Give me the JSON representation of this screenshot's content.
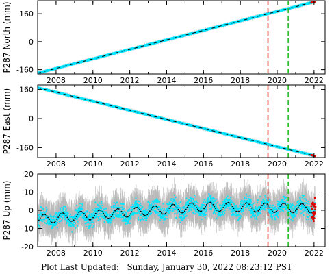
{
  "colors": {
    "data": "#00e5ff",
    "errorbar": "#b9b9b9",
    "trend": "#000000",
    "recent": "#dd0000",
    "line_red": "#ee1111",
    "line_green": "#22bb22"
  },
  "chart_data": [
    {
      "type": "scatter",
      "ylabel": "P287 North (mm)",
      "xlim": [
        2007.0,
        2022.6
      ],
      "ylim": [
        -185,
        235
      ],
      "x_ticks": [
        "2008",
        "2010",
        "2012",
        "2014",
        "2016",
        "2018",
        "2020",
        "2022"
      ],
      "y_ticks": [
        "160",
        "0",
        "-160"
      ],
      "series": [
        {
          "x": [
            2007.0,
            2022.0
          ],
          "y": [
            -180,
            228
          ]
        }
      ],
      "vlines": [
        {
          "x": 2019.5,
          "color": "red",
          "style": "dashed"
        },
        {
          "x": 2020.6,
          "color": "green",
          "style": "dashed"
        }
      ]
    },
    {
      "type": "scatter",
      "ylabel": "P287 East (mm)",
      "xlim": [
        2007.0,
        2022.6
      ],
      "ylim": [
        -215,
        185
      ],
      "x_ticks": [
        "2008",
        "2010",
        "2012",
        "2014",
        "2016",
        "2018",
        "2020",
        "2022"
      ],
      "y_ticks": [
        "160",
        "0",
        "-160"
      ],
      "series": [
        {
          "x": [
            2007.0,
            2022.0
          ],
          "y": [
            170,
            -205
          ]
        }
      ],
      "vlines": [
        {
          "x": 2019.5,
          "color": "red",
          "style": "dashed"
        },
        {
          "x": 2020.6,
          "color": "green",
          "style": "dashed"
        }
      ]
    },
    {
      "type": "scatter",
      "ylabel": "P287 Up (mm)",
      "xlim": [
        2007.0,
        2022.6
      ],
      "ylim": [
        -20,
        20
      ],
      "x_ticks": [
        "2008",
        "2010",
        "2012",
        "2014",
        "2016",
        "2018",
        "2020",
        "2022"
      ],
      "y_ticks": [
        "20",
        "10",
        "0",
        "-10",
        "-20"
      ],
      "series": [
        {
          "baseline_x": [
            2007.0,
            2016.0,
            2022.0
          ],
          "baseline_y": [
            -5,
            2,
            1
          ],
          "seasonal_amplitude_mm": 2.5,
          "scatter_mm": 4,
          "errorbar_mm": 7
        }
      ],
      "vlines": [
        {
          "x": 2019.5,
          "color": "red",
          "style": "dashed"
        },
        {
          "x": 2020.6,
          "color": "green",
          "style": "dashed"
        }
      ]
    }
  ],
  "footer": {
    "label": "Plot Last Updated:",
    "timestamp": "Sunday, January 30, 2022 08:23:12 PST"
  }
}
